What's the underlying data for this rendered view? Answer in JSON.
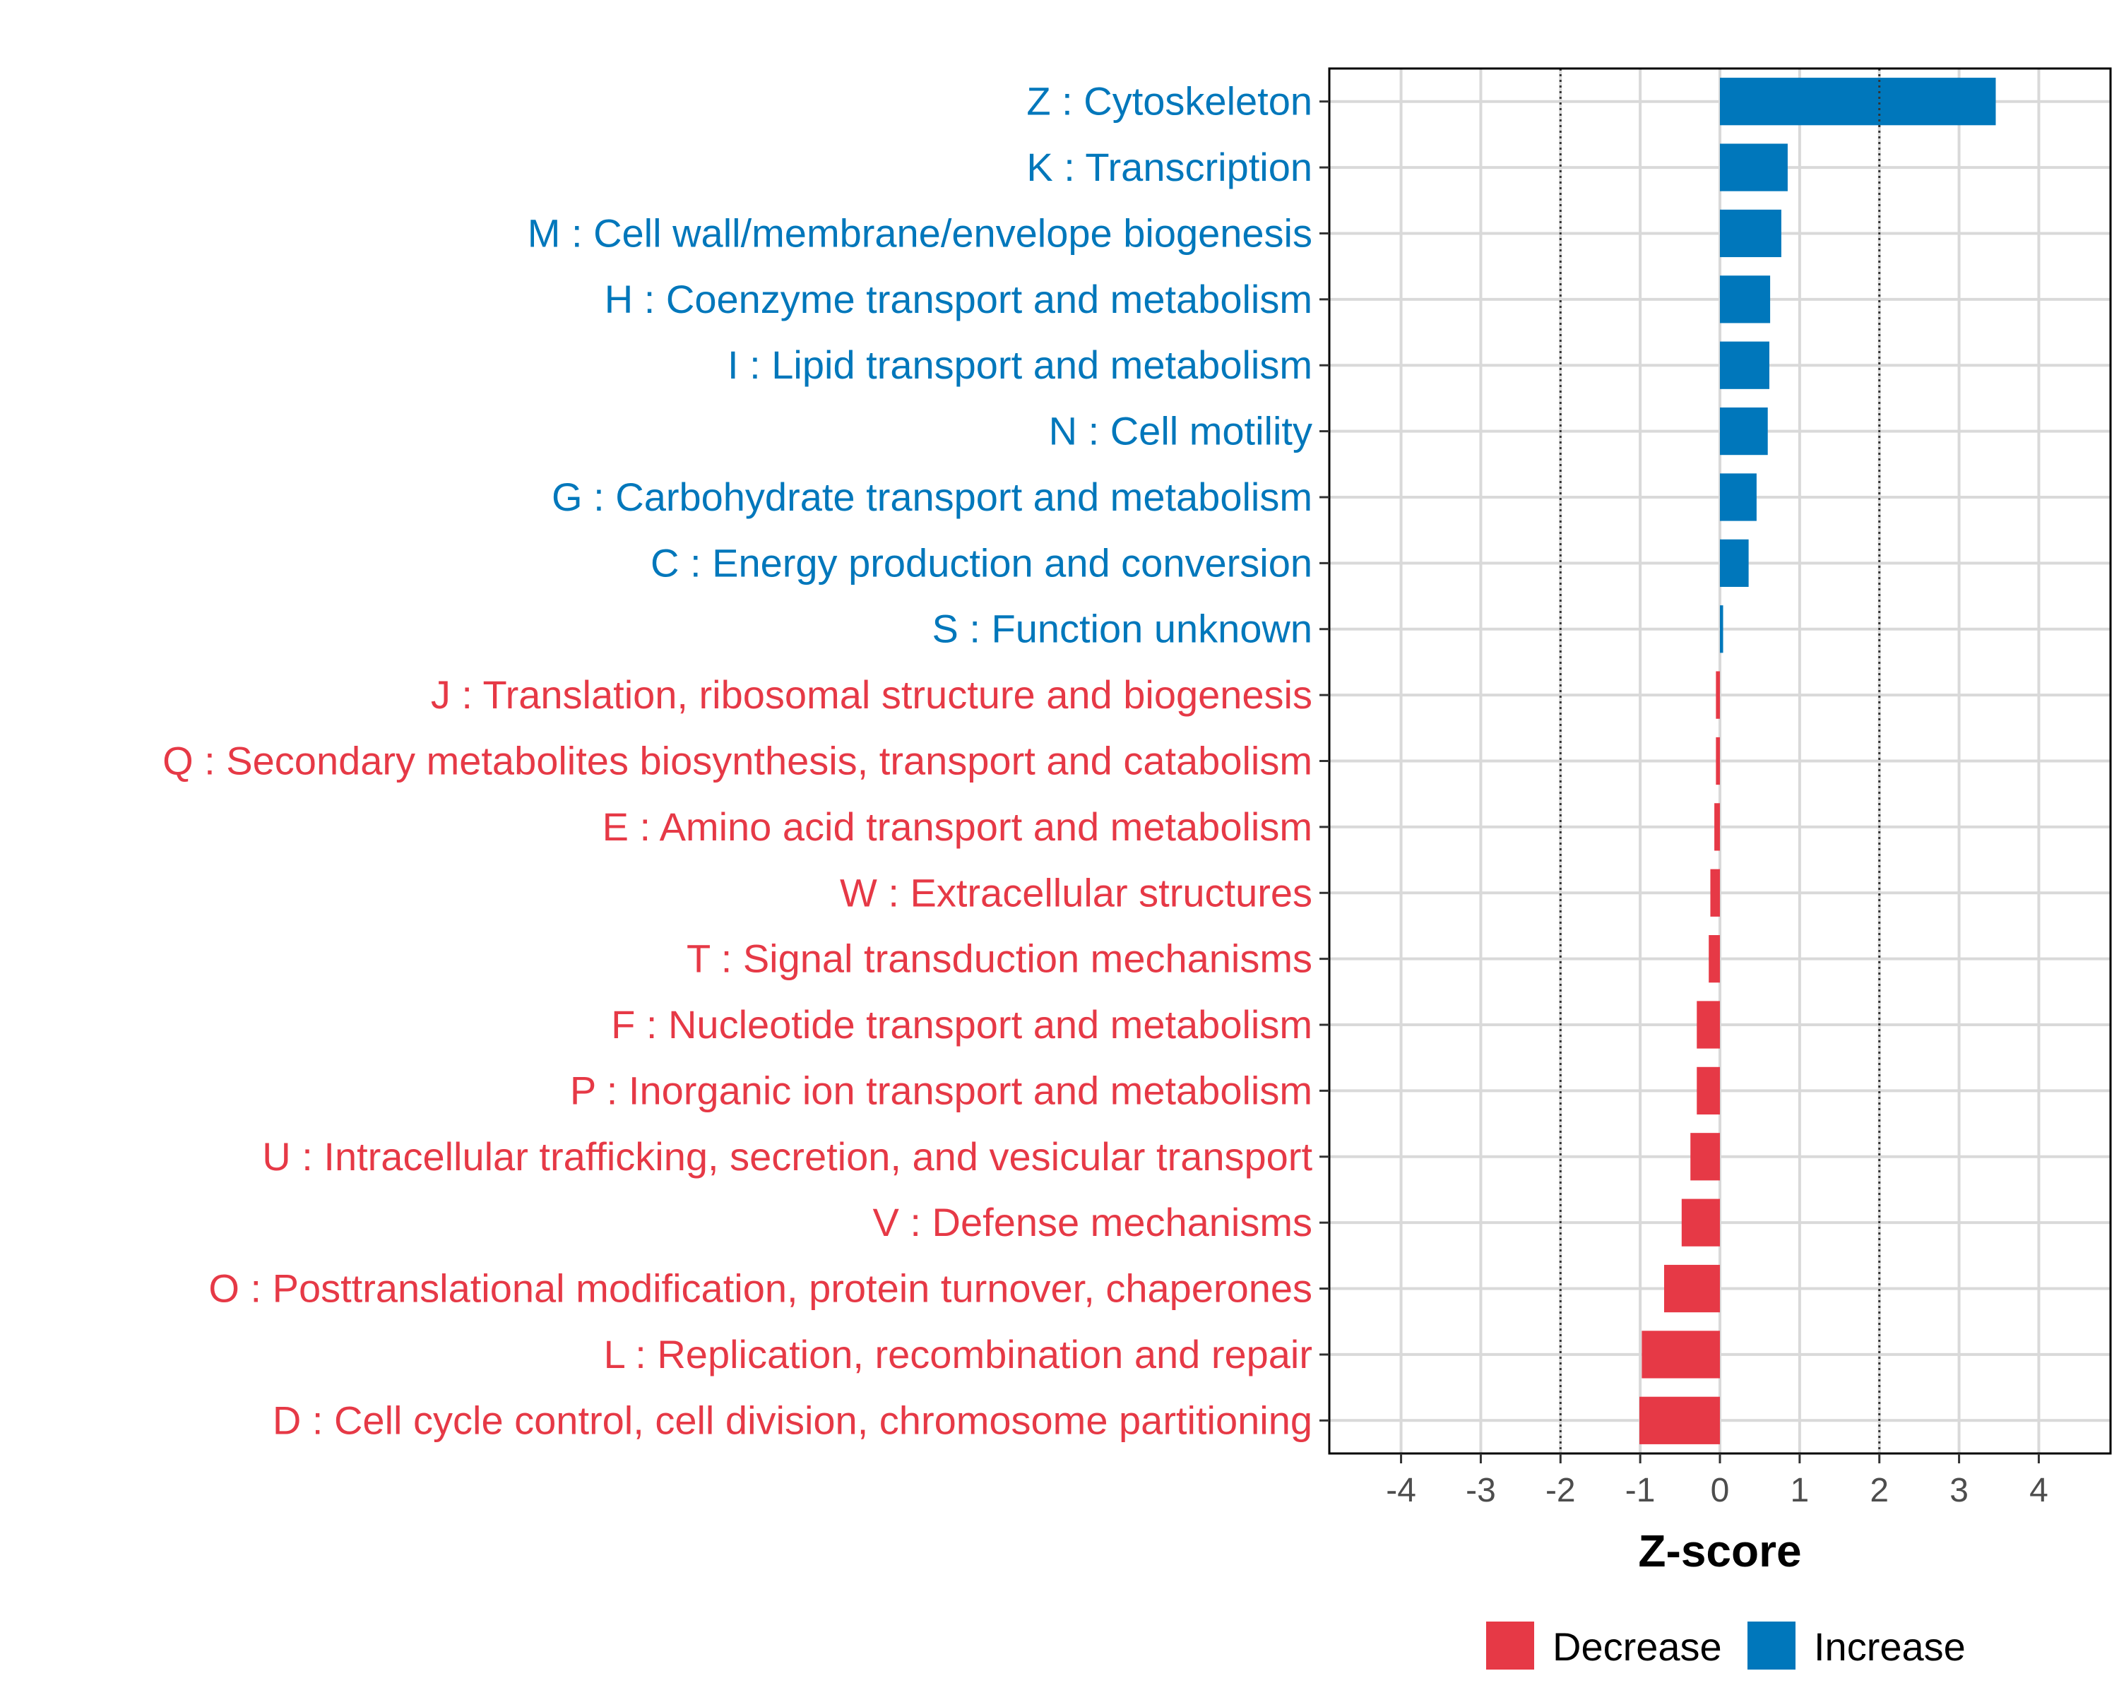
{
  "chart_data": {
    "type": "bar",
    "orientation": "horizontal",
    "title": "",
    "xlabel": "Z-score",
    "ylabel": "",
    "xlim": [
      -4.9,
      4.9
    ],
    "xticks": [
      -4,
      -3,
      -2,
      -1,
      0,
      1,
      2,
      3,
      4
    ],
    "xtick_labels": [
      "-4",
      "-3",
      "-2",
      "-1",
      "0",
      "1",
      "2",
      "3",
      "4"
    ],
    "reference_lines": [
      -2,
      2
    ],
    "grid": true,
    "categories": [
      "Z : Cytoskeleton",
      "K : Transcription",
      "M : Cell wall/membrane/envelope biogenesis",
      "H : Coenzyme transport and metabolism",
      "I : Lipid transport and metabolism",
      "N : Cell motility",
      "G : Carbohydrate transport and metabolism",
      "C : Energy production and conversion",
      "S : Function unknown",
      "J : Translation, ribosomal structure and biogenesis",
      "Q : Secondary metabolites biosynthesis, transport and catabolism",
      "E : Amino acid transport and metabolism",
      "W : Extracellular structures",
      "T : Signal transduction mechanisms",
      "F : Nucleotide transport and metabolism",
      "P : Inorganic ion transport and metabolism",
      "U : Intracellular trafficking, secretion, and vesicular transport",
      "V : Defense mechanisms",
      "O : Posttranslational modification, protein turnover, chaperones",
      "L : Replication, recombination and repair",
      "D : Cell cycle control, cell division, chromosome partitioning"
    ],
    "values": [
      3.46,
      0.85,
      0.77,
      0.63,
      0.62,
      0.6,
      0.46,
      0.36,
      0.04,
      -0.05,
      -0.05,
      -0.07,
      -0.12,
      -0.14,
      -0.29,
      -0.29,
      -0.37,
      -0.48,
      -0.7,
      -0.98,
      -1.01
    ],
    "groups": [
      "Increase",
      "Increase",
      "Increase",
      "Increase",
      "Increase",
      "Increase",
      "Increase",
      "Increase",
      "Increase",
      "Decrease",
      "Decrease",
      "Decrease",
      "Decrease",
      "Decrease",
      "Decrease",
      "Decrease",
      "Decrease",
      "Decrease",
      "Decrease",
      "Decrease",
      "Decrease"
    ],
    "legend": {
      "position": "bottom",
      "entries": [
        {
          "label": "Decrease",
          "color": "#E63946"
        },
        {
          "label": "Increase",
          "color": "#0077BB"
        }
      ]
    },
    "colors": {
      "Increase": "#0077BB",
      "Decrease": "#E63946"
    }
  }
}
